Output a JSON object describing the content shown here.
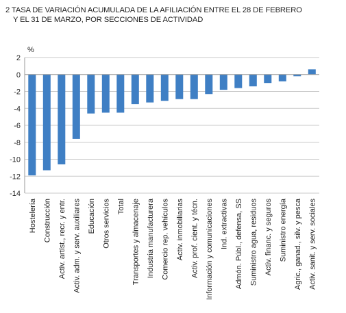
{
  "title_line1": "2  TASA DE VARIACIÓN ACUMULADA DE LA AFILIACIÓN ENTRE EL 28 DE FEBRERO",
  "title_line2": "Y EL 31 DE MARZO, POR SECCIONES DE ACTIVIDAD",
  "chart_data": {
    "type": "bar",
    "ylabel": "%",
    "ylim": [
      -14,
      2
    ],
    "yticks": [
      2,
      0,
      -2,
      -4,
      -6,
      -8,
      -10,
      -12,
      -14
    ],
    "grid": true,
    "bar_color": "#3f7fc4",
    "categories": [
      "Hostelería",
      "Construcción",
      "Activ. artíst., recr. y entr.",
      "Activ. adm. y serv. auxiliares",
      "Educación",
      "Otros servicios",
      "Total",
      "Transportes y almacenaje",
      "Industria manufacturera",
      "Comercio rep. vehículos",
      "Activ. inmobiliarias",
      "Activ. prof. cient. y técn.",
      "Información y comunicaciones",
      "Ind. extractivas",
      "Admón. Públ., defensa, SS",
      "Suministro agua, residuos",
      "Activ. financ. y seguros",
      "Suministro energía",
      "Agric., ganad., silv. y pesca",
      "Activ. sanit. y serv. sociales"
    ],
    "values": [
      -11.9,
      -11.3,
      -10.6,
      -7.6,
      -4.6,
      -4.5,
      -4.5,
      -3.5,
      -3.3,
      -3.1,
      -2.9,
      -2.9,
      -2.3,
      -1.8,
      -1.6,
      -1.4,
      -1.0,
      -0.8,
      -0.2,
      0.6
    ]
  }
}
